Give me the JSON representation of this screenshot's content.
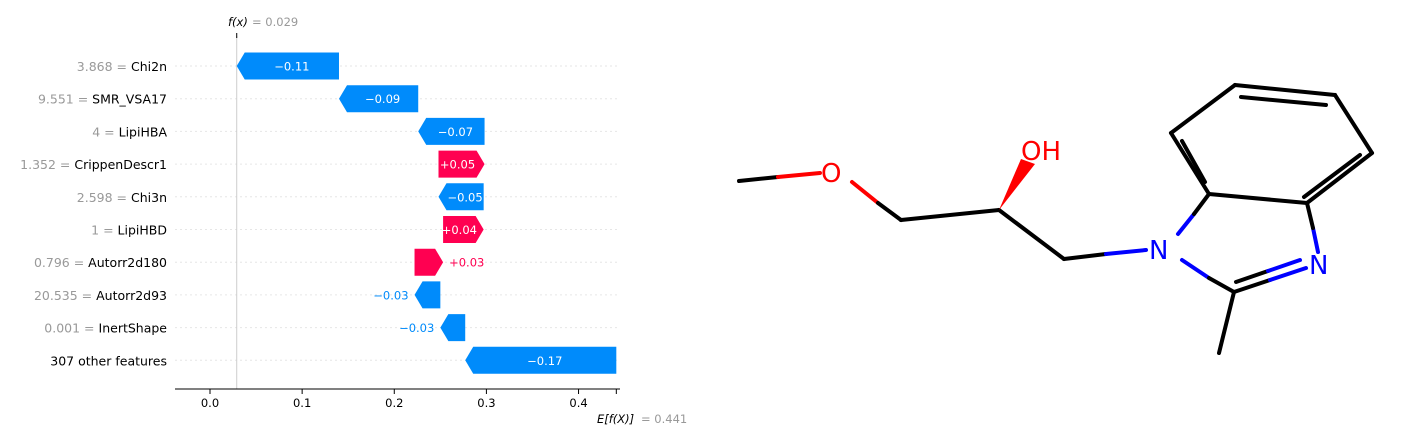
{
  "chart_data": {
    "type": "waterfall",
    "fx_label": "f(x)",
    "fx_value": "= 0.029",
    "fx": 0.029,
    "base_label": "E[f(X)]",
    "base_value": "= 0.441",
    "base": 0.441,
    "xlim": [
      -0.038,
      0.445
    ],
    "xticks": [
      0.0,
      0.1,
      0.2,
      0.3,
      0.4
    ],
    "xtick_labels": [
      "0.0",
      "0.1",
      "0.2",
      "0.3",
      "0.4"
    ],
    "colors": {
      "negative": "#008bfb",
      "positive": "#ff0051",
      "value_grey": "#999999",
      "feature": "#000000"
    },
    "features": [
      {
        "value": "3.868",
        "name": "Chi2n",
        "contribution": -0.11,
        "label": "−0.11",
        "end": 0.029,
        "start": 0.14
      },
      {
        "value": "9.551",
        "name": "SMR_VSA17",
        "contribution": -0.09,
        "label": "−0.09",
        "end": 0.14,
        "start": 0.226
      },
      {
        "value": "4",
        "name": "LipiHBA",
        "contribution": -0.07,
        "label": "−0.07",
        "end": 0.226,
        "start": 0.298
      },
      {
        "value": "1.352",
        "name": "CrippenDescr1",
        "contribution": 0.05,
        "label": "+0.05",
        "end": 0.298,
        "start": 0.248
      },
      {
        "value": "2.598",
        "name": "Chi3n",
        "contribution": -0.05,
        "label": "−0.05",
        "end": 0.248,
        "start": 0.297
      },
      {
        "value": "1",
        "name": "LipiHBD",
        "contribution": 0.04,
        "label": "+0.04",
        "end": 0.297,
        "start": 0.253
      },
      {
        "value": "0.796",
        "name": "Autorr2d180",
        "contribution": 0.03,
        "label": "+0.03",
        "end": 0.253,
        "start": 0.222
      },
      {
        "value": "20.535",
        "name": "Autorr2d93",
        "contribution": -0.03,
        "label": "−0.03",
        "end": 0.222,
        "start": 0.25
      },
      {
        "value": "0.001",
        "name": "InertShape",
        "contribution": -0.03,
        "label": "−0.03",
        "end": 0.25,
        "start": 0.277
      },
      {
        "value": "",
        "name": "307 other features",
        "contribution": -0.17,
        "label": "−0.17",
        "end": 0.277,
        "start": 0.441
      }
    ]
  },
  "molecule": {
    "labels": {
      "oh": "OH",
      "o": "O",
      "n1": "N",
      "n2": "N"
    },
    "colors": {
      "bond": "#000000",
      "oxygen": "#ff0000",
      "nitrogen": "#0000ff"
    }
  }
}
